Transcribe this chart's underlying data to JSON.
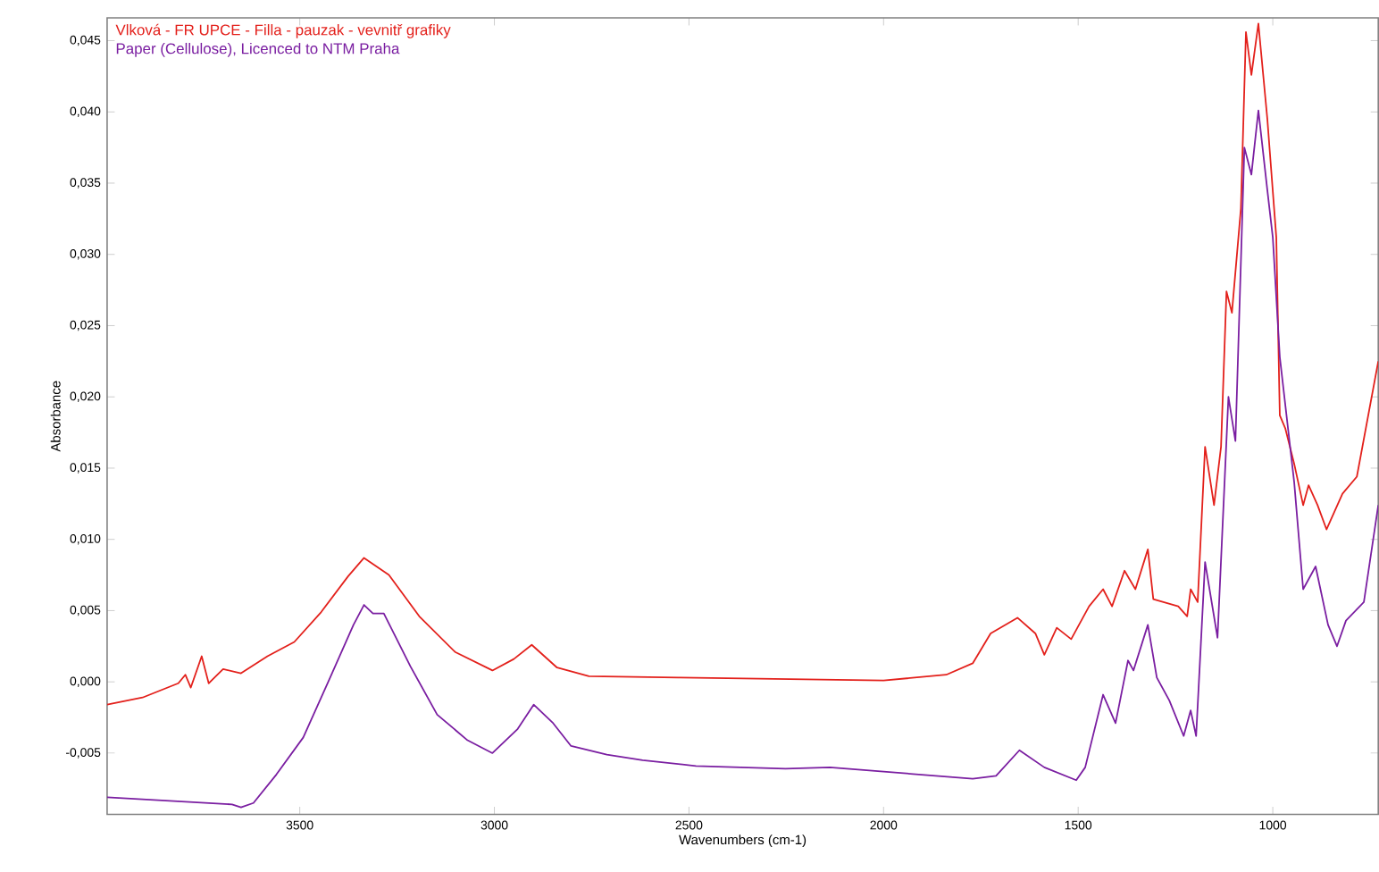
{
  "chart_data": {
    "type": "line",
    "xlabel": "Wavenumbers (cm-1)",
    "ylabel": "Absorbance",
    "xlim": [
      3995,
      729
    ],
    "ylim": [
      -0.0093,
      0.0466
    ],
    "xticks": [
      3500,
      3000,
      2500,
      2000,
      1500,
      1000
    ],
    "yticks": [
      {
        "value": -0.005,
        "label": "-0,005"
      },
      {
        "value": 0,
        "label": "0,000"
      },
      {
        "value": 0.005,
        "label": "0,005"
      },
      {
        "value": 0.01,
        "label": "0,010"
      },
      {
        "value": 0.015,
        "label": "0,015"
      },
      {
        "value": 0.02,
        "label": "0,020"
      },
      {
        "value": 0.025,
        "label": "0,025"
      },
      {
        "value": 0.03,
        "label": "0,030"
      },
      {
        "value": 0.035,
        "label": "0,035"
      },
      {
        "value": 0.04,
        "label": "0,040"
      },
      {
        "value": 0.045,
        "label": "0,045"
      }
    ],
    "legend": "top left",
    "grid": false,
    "marker": "none",
    "line_style": "solid",
    "series": [
      {
        "name": "Vlková - FR UPCE - Filla - pauzak - vevnitř grafiky",
        "color": "#e3201b",
        "x": [
          3995,
          3904,
          3812,
          3794,
          3780,
          3752,
          3734,
          3697,
          3651,
          3583,
          3514,
          3445,
          3376,
          3335,
          3271,
          3193,
          3101,
          3005,
          2950,
          2904,
          2839,
          2757,
          2527,
          2000,
          1839,
          1771,
          1725,
          1656,
          1610,
          1587,
          1555,
          1518,
          1472,
          1436,
          1413,
          1381,
          1353,
          1321,
          1307,
          1243,
          1220,
          1211,
          1193,
          1174,
          1151,
          1133,
          1119,
          1105,
          1082,
          1069,
          1055,
          1037,
          1014,
          991,
          982,
          968,
          945,
          922,
          908,
          885,
          862,
          821,
          784,
          729
        ],
        "values": [
          -0.0016,
          -0.0011,
          -0.0001,
          0.0005,
          -0.0004,
          0.0018,
          -0.0001,
          0.0009,
          0.0006,
          0.0018,
          0.0028,
          0.0049,
          0.0074,
          0.0087,
          0.0075,
          0.0046,
          0.0021,
          0.0008,
          0.0016,
          0.0026,
          0.001,
          0.0004,
          0.0003,
          0.0001,
          0.0005,
          0.0013,
          0.0034,
          0.0045,
          0.0034,
          0.0019,
          0.0038,
          0.003,
          0.0053,
          0.0065,
          0.0053,
          0.0078,
          0.0065,
          0.0093,
          0.0058,
          0.0053,
          0.0046,
          0.0065,
          0.0056,
          0.0165,
          0.0124,
          0.0165,
          0.0274,
          0.0259,
          0.0332,
          0.0456,
          0.0426,
          0.0462,
          0.0395,
          0.0312,
          0.0187,
          0.0178,
          0.0153,
          0.0124,
          0.0138,
          0.0124,
          0.0107,
          0.0132,
          0.0144,
          0.0225
        ]
      },
      {
        "name": "Paper (Cellulose), Licenced to NTM Praha",
        "color": "#7a1ea1",
        "x": [
          3995,
          3674,
          3651,
          3619,
          3560,
          3491,
          3422,
          3362,
          3335,
          3312,
          3284,
          3216,
          3147,
          3069,
          3005,
          2940,
          2899,
          2849,
          2803,
          2711,
          2619,
          2482,
          2252,
          2138,
          2000,
          1771,
          1711,
          1651,
          1587,
          1505,
          1482,
          1436,
          1404,
          1372,
          1358,
          1321,
          1298,
          1266,
          1229,
          1211,
          1197,
          1174,
          1142,
          1114,
          1096,
          1073,
          1055,
          1037,
          1014,
          1000,
          982,
          945,
          922,
          890,
          858,
          835,
          812,
          766,
          729
        ],
        "values": [
          -0.0081,
          -0.0086,
          -0.0088,
          -0.0085,
          -0.0065,
          -0.0039,
          0.0003,
          0.004,
          0.0054,
          0.0048,
          0.0048,
          0.0011,
          -0.0023,
          -0.0041,
          -0.005,
          -0.0033,
          -0.0016,
          -0.0029,
          -0.0045,
          -0.0051,
          -0.0055,
          -0.0059,
          -0.0061,
          -0.006,
          -0.0063,
          -0.0068,
          -0.0066,
          -0.0048,
          -0.006,
          -0.0069,
          -0.006,
          -0.0009,
          -0.0029,
          0.0015,
          0.0008,
          0.004,
          0.0003,
          -0.0013,
          -0.0038,
          -0.002,
          -0.0038,
          0.0084,
          0.0031,
          0.02,
          0.0169,
          0.0375,
          0.0356,
          0.0401,
          0.0345,
          0.0312,
          0.0228,
          0.014,
          0.0065,
          0.0081,
          0.004,
          0.0025,
          0.0043,
          0.0056,
          0.0124
        ]
      }
    ]
  }
}
